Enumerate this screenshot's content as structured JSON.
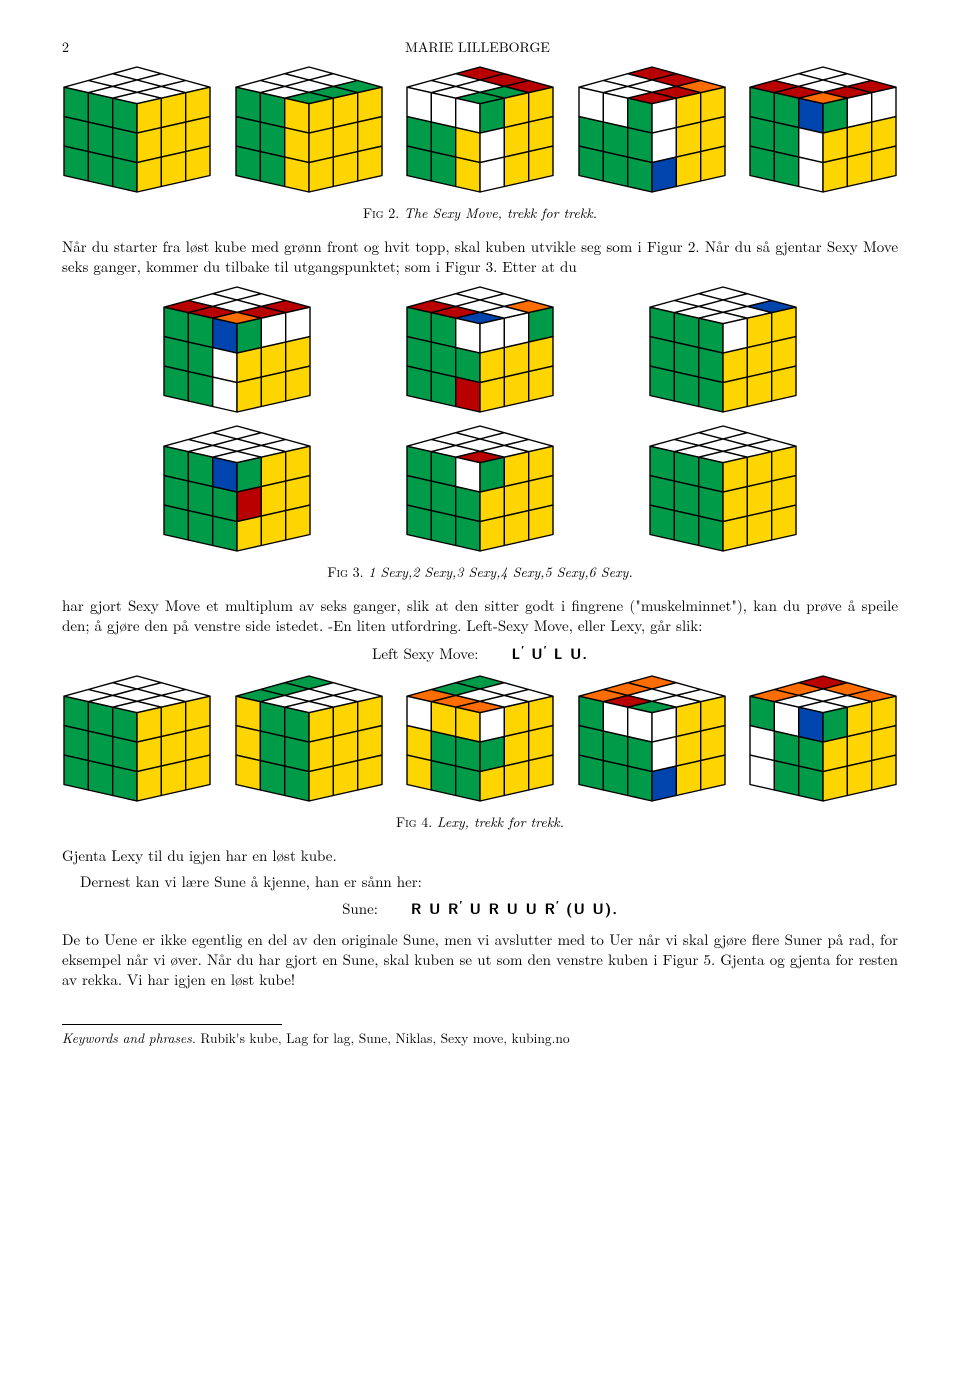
{
  "page_number": "2",
  "author": "MARIE LILLEBORGE",
  "colors": {
    "G": "#009b48",
    "W": "#ffffff",
    "Y": "#ffd500",
    "R": "#b90000",
    "O": "#ff6c00",
    "B": "#0045ad",
    "edge": "#000000"
  },
  "cube_geometry": {
    "width": 140,
    "height": 120
  },
  "fig2": {
    "caption_label": "Fig 2.",
    "caption_text": "The Sexy Move, trekk for trekk.",
    "cubes": [
      {
        "top": [
          "W",
          "W",
          "W",
          "W",
          "W",
          "W",
          "W",
          "W",
          "W"
        ],
        "front": [
          "G",
          "G",
          "G",
          "G",
          "G",
          "G",
          "G",
          "G",
          "G"
        ],
        "right": [
          "Y",
          "Y",
          "Y",
          "Y",
          "Y",
          "Y",
          "Y",
          "Y",
          "Y"
        ]
      },
      {
        "top": [
          "W",
          "W",
          "G",
          "W",
          "W",
          "G",
          "W",
          "W",
          "G"
        ],
        "front": [
          "G",
          "G",
          "Y",
          "G",
          "G",
          "Y",
          "G",
          "G",
          "Y"
        ],
        "right": [
          "Y",
          "Y",
          "Y",
          "Y",
          "Y",
          "Y",
          "Y",
          "Y",
          "Y"
        ]
      },
      {
        "top": [
          "R",
          "R",
          "R",
          "W",
          "W",
          "G",
          "W",
          "W",
          "G"
        ],
        "front": [
          "W",
          "W",
          "W",
          "G",
          "G",
          "Y",
          "G",
          "G",
          "Y"
        ],
        "right": [
          "G",
          "Y",
          "Y",
          "W",
          "Y",
          "Y",
          "W",
          "Y",
          "Y"
        ]
      },
      {
        "top": [
          "R",
          "R",
          "O",
          "W",
          "W",
          "R",
          "W",
          "W",
          "R"
        ],
        "front": [
          "W",
          "W",
          "G",
          "G",
          "G",
          "G",
          "G",
          "G",
          "G"
        ],
        "right": [
          "W",
          "Y",
          "Y",
          "W",
          "Y",
          "Y",
          "B",
          "Y",
          "Y"
        ]
      },
      {
        "top": [
          "W",
          "W",
          "R",
          "W",
          "W",
          "R",
          "R",
          "R",
          "O"
        ],
        "front": [
          "G",
          "G",
          "B",
          "G",
          "G",
          "W",
          "G",
          "G",
          "W"
        ],
        "right": [
          "G",
          "W",
          "W",
          "Y",
          "Y",
          "Y",
          "Y",
          "Y",
          "Y"
        ]
      }
    ]
  },
  "para1": "Når du starter fra løst kube med grønn front og hvit topp, skal kuben utvikle seg som i Figur 2. Når du så gjentar Sexy Move seks ganger, kommer du tilbake til utgangspunktet; som i Figur 3. Etter at du",
  "fig3": {
    "caption_label": "Fig 3.",
    "caption_text": "1 Sexy,2 Sexy,3 Sexy,4 Sexy,5 Sexy,6 Sexy.",
    "row1": [
      {
        "top": [
          "W",
          "W",
          "R",
          "W",
          "W",
          "R",
          "R",
          "R",
          "O"
        ],
        "front": [
          "G",
          "G",
          "B",
          "G",
          "G",
          "W",
          "G",
          "G",
          "W"
        ],
        "right": [
          "G",
          "W",
          "W",
          "Y",
          "Y",
          "Y",
          "Y",
          "Y",
          "Y"
        ]
      },
      {
        "top": [
          "W",
          "W",
          "O",
          "W",
          "W",
          "W",
          "R",
          "R",
          "B"
        ],
        "front": [
          "G",
          "G",
          "W",
          "G",
          "G",
          "G",
          "G",
          "G",
          "R"
        ],
        "right": [
          "W",
          "W",
          "G",
          "Y",
          "Y",
          "Y",
          "Y",
          "Y",
          "Y"
        ]
      },
      {
        "top": [
          "W",
          "W",
          "B",
          "W",
          "W",
          "W",
          "W",
          "W",
          "W"
        ],
        "front": [
          "G",
          "G",
          "G",
          "G",
          "G",
          "G",
          "G",
          "G",
          "G"
        ],
        "right": [
          "W",
          "Y",
          "Y",
          "Y",
          "Y",
          "Y",
          "Y",
          "Y",
          "Y"
        ]
      }
    ],
    "row2": [
      {
        "top": [
          "W",
          "W",
          "W",
          "W",
          "W",
          "W",
          "W",
          "W",
          "W"
        ],
        "front": [
          "G",
          "G",
          "B",
          "G",
          "G",
          "G",
          "G",
          "G",
          "G"
        ],
        "right": [
          "G",
          "Y",
          "Y",
          "R",
          "Y",
          "Y",
          "Y",
          "Y",
          "Y"
        ]
      },
      {
        "top": [
          "W",
          "W",
          "W",
          "W",
          "W",
          "W",
          "W",
          "W",
          "R"
        ],
        "front": [
          "G",
          "G",
          "W",
          "G",
          "G",
          "G",
          "G",
          "G",
          "G"
        ],
        "right": [
          "G",
          "Y",
          "Y",
          "Y",
          "Y",
          "Y",
          "Y",
          "Y",
          "Y"
        ]
      },
      {
        "top": [
          "W",
          "W",
          "W",
          "W",
          "W",
          "W",
          "W",
          "W",
          "W"
        ],
        "front": [
          "G",
          "G",
          "G",
          "G",
          "G",
          "G",
          "G",
          "G",
          "G"
        ],
        "right": [
          "Y",
          "Y",
          "Y",
          "Y",
          "Y",
          "Y",
          "Y",
          "Y",
          "Y"
        ]
      }
    ]
  },
  "para2": "har gjort Sexy Move et multiplum av seks ganger, slik at den sitter godt i fingrene (\"muskelminnet\"), kan du prøve å speile den; å gjøre den på venstre side istedet. -En liten utfordring. Left-Sexy Move, eller Lexy, går slik:",
  "left_sexy": {
    "label": "Left Sexy Move:",
    "alg_html": "L′ U′ L U."
  },
  "fig4": {
    "caption_label": "Fig 4.",
    "caption_text": "Lexy, trekk for trekk.",
    "cubes": [
      {
        "top": [
          "W",
          "W",
          "W",
          "W",
          "W",
          "W",
          "W",
          "W",
          "W"
        ],
        "front": [
          "G",
          "G",
          "G",
          "G",
          "G",
          "G",
          "G",
          "G",
          "G"
        ],
        "right": [
          "Y",
          "Y",
          "Y",
          "Y",
          "Y",
          "Y",
          "Y",
          "Y",
          "Y"
        ]
      },
      {
        "top": [
          "G",
          "W",
          "W",
          "G",
          "W",
          "W",
          "G",
          "W",
          "W"
        ],
        "front": [
          "Y",
          "G",
          "G",
          "Y",
          "G",
          "G",
          "Y",
          "G",
          "G"
        ],
        "right": [
          "Y",
          "Y",
          "Y",
          "Y",
          "Y",
          "Y",
          "Y",
          "Y",
          "Y"
        ]
      },
      {
        "top": [
          "G",
          "W",
          "W",
          "G",
          "W",
          "W",
          "O",
          "O",
          "O"
        ],
        "front": [
          "W",
          "Y",
          "Y",
          "Y",
          "G",
          "G",
          "Y",
          "G",
          "G"
        ],
        "right": [
          "W",
          "Y",
          "Y",
          "G",
          "Y",
          "Y",
          "Y",
          "Y",
          "Y"
        ]
      },
      {
        "top": [
          "O",
          "W",
          "W",
          "O",
          "W",
          "W",
          "O",
          "R",
          "G"
        ],
        "front": [
          "G",
          "W",
          "W",
          "G",
          "G",
          "G",
          "G",
          "G",
          "G"
        ],
        "right": [
          "W",
          "Y",
          "Y",
          "W",
          "Y",
          "Y",
          "B",
          "Y",
          "Y"
        ]
      },
      {
        "top": [
          "R",
          "O",
          "O",
          "O",
          "W",
          "W",
          "O",
          "W",
          "W"
        ],
        "front": [
          "G",
          "W",
          "B",
          "W",
          "G",
          "G",
          "W",
          "G",
          "G"
        ],
        "right": [
          "G",
          "Y",
          "Y",
          "Y",
          "Y",
          "Y",
          "Y",
          "Y",
          "Y"
        ]
      }
    ]
  },
  "para3": "Gjenta Lexy til du igjen har en løst kube.",
  "para4": "Dernest kan vi lære Sune å kjenne, han er sånn her:",
  "sune": {
    "label": "Sune:",
    "alg_html": "R U R′ U R U U R′ (U U)."
  },
  "para5": "De to Uene er ikke egentlig en del av den originale Sune, men vi avslutter med to Uer når vi skal gjøre flere Suner på rad, for eksempel når vi øver. Når du har gjort en Sune, skal kuben se ut som den venstre kuben i Figur 5. Gjenta og gjenta for resten av rekka. Vi har igjen en løst kube!",
  "keywords": {
    "label": "Keywords and phrases.",
    "text": "Rubik's kube, Lag for lag, Sune, Niklas, Sexy move, kubing.no"
  }
}
